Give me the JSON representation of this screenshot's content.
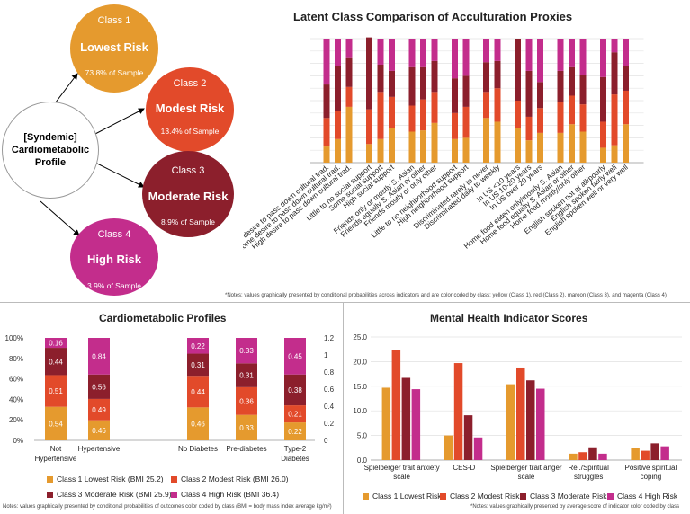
{
  "colors": {
    "class1": "#e59a2e",
    "class2": "#e24a2a",
    "class3": "#8c1f2c",
    "class4": "#c32d8c"
  },
  "left_panel": {
    "center": {
      "text_line1": "[Syndemic]",
      "text_line2": "Cardiometabolic",
      "text_line3": "Profile"
    },
    "classes": [
      {
        "class_label": "Class 1",
        "risk": "Lowest Risk",
        "sample": "73.8% of Sample"
      },
      {
        "class_label": "Class 2",
        "risk": "Modest Risk",
        "sample": "13.4% of Sample"
      },
      {
        "class_label": "Class 3",
        "risk": "Moderate Risk",
        "sample": "8.9% of Sample"
      },
      {
        "class_label": "Class 4",
        "risk": "High Risk",
        "sample": "3.9% of Sample"
      }
    ]
  },
  "chart_data": [
    {
      "type": "bar",
      "stacked": true,
      "title": "Latent Class Comparison of Acculturation Proxies",
      "note": "*Notes: values graphically presented by conditional probabilities across indicators and are color coded by class: yellow (Class 1), red (Class 2), maroon (Class 3), and magenta (Class 4)",
      "categories": [
        "Little/no desire to pass down cultural trad.",
        "Some desire to pass down cultural trad.",
        "High desire to pass down cultural trad.",
        "Little to no social support",
        "Some social support",
        "High social support",
        "Friends only or mostly S. Asian",
        "Friends equally S. Asian or other",
        "Friends mostly or only other",
        "Little to no neighborhood support",
        "High neighborhood support",
        "Discriminated rarely to never",
        "Discriminated daily to weekly",
        "In US <10 years",
        "In US 10-20 years",
        "In US over 20 years",
        "Home food eaten only/mostly S. Asian",
        "Home food equally S. Asian or other",
        "Home food mostly/only other",
        "English spoken not at all/poorly",
        "English spoken fairly well",
        "English spoken well or very well"
      ],
      "groups": [
        3,
        3,
        3,
        2,
        2,
        3,
        3,
        3
      ],
      "series": [
        {
          "name": "Class 1",
          "values": [
            0.13,
            0.19,
            0.45,
            0.15,
            0.19,
            0.28,
            0.25,
            0.26,
            0.32,
            0.19,
            0.2,
            0.36,
            0.33,
            0.28,
            0.18,
            0.24,
            0.24,
            0.31,
            0.25,
            0.12,
            0.14,
            0.31
          ]
        },
        {
          "name": "Class 2",
          "values": [
            0.23,
            0.23,
            0.16,
            0.28,
            0.38,
            0.25,
            0.21,
            0.25,
            0.25,
            0.21,
            0.25,
            0.21,
            0.27,
            0.22,
            0.19,
            0.2,
            0.25,
            0.23,
            0.22,
            0.21,
            0.41,
            0.27
          ]
        },
        {
          "name": "Class 3",
          "values": [
            0.27,
            0.36,
            0.24,
            0.58,
            0.22,
            0.21,
            0.31,
            0.26,
            0.25,
            0.28,
            0.25,
            0.24,
            0.22,
            0.5,
            0.37,
            0.21,
            0.25,
            0.23,
            0.24,
            0.36,
            0.34,
            0.2
          ]
        },
        {
          "name": "Class 4",
          "values": [
            0.37,
            0.22,
            0.15,
            0.0,
            0.21,
            0.26,
            0.23,
            0.23,
            0.18,
            0.32,
            0.3,
            0.19,
            0.18,
            0.0,
            0.26,
            0.35,
            0.26,
            0.23,
            0.29,
            0.31,
            0.11,
            0.22
          ]
        }
      ]
    },
    {
      "type": "bar",
      "stacked": true,
      "title": "Cardiometabolic Profiles",
      "note": "Notes: values graphically presented by conditional probabilities of outcomes color coded by class (BMI = body mass index average kg/m²)",
      "categories": [
        "Not Hypertensive",
        "Hypertensive",
        "No Diabetes",
        "Pre-diabetes",
        "Type-2 Diabetes"
      ],
      "y_ticks_left": [
        "0%",
        "20%",
        "40%",
        "60%",
        "80%",
        "100%"
      ],
      "y_ticks_right": [
        "0",
        "0.2",
        "0.4",
        "0.6",
        "0.8",
        "1",
        "1.2"
      ],
      "series": [
        {
          "name": "Class 1 Lowest Risk (BMI 25.2)",
          "values": [
            0.54,
            0.46,
            0.46,
            0.33,
            0.22
          ],
          "labels": [
            "0.54",
            "0.46",
            "0.46",
            "0.33",
            "0.22"
          ]
        },
        {
          "name": "Class 2 Modest Risk (BMI 26.0)",
          "values": [
            0.51,
            0.49,
            0.44,
            0.36,
            0.21
          ],
          "labels": [
            "0.51",
            "0.49",
            "0.44",
            "0.36",
            "0.21"
          ]
        },
        {
          "name": "Class 3 Moderate Risk (BMI 25.9)",
          "values": [
            0.44,
            0.56,
            0.31,
            0.31,
            0.38
          ],
          "labels": [
            "0.44",
            "0.56",
            "0.31",
            "0.31",
            "0.38"
          ]
        },
        {
          "name": "Class 4 High Risk (BMI 36.4)",
          "values": [
            0.16,
            0.84,
            0.22,
            0.33,
            0.45
          ],
          "labels": [
            "0.16",
            "0.84",
            "0.22",
            "0.33",
            "0.45"
          ]
        }
      ]
    },
    {
      "type": "bar",
      "title": "Mental Health Indicator Scores",
      "note": "*Notes: values graphically presented by average score of indicator color coded by class",
      "categories": [
        "Spielberger trait anxiety scale",
        "CES-D",
        "Spielberger trait anger scale",
        "Rel./Spiritual struggles",
        "Positive spiritual coping"
      ],
      "ylim": [
        0,
        25
      ],
      "y_ticks": [
        "0.0",
        "5.0",
        "10.0",
        "15.0",
        "20.0",
        "25.0"
      ],
      "series": [
        {
          "name": "Class 1 Lowest Risk",
          "values": [
            14.7,
            5.0,
            15.4,
            1.3,
            2.5
          ]
        },
        {
          "name": "Class 2 Modest Risk",
          "values": [
            22.3,
            19.7,
            18.8,
            1.6,
            1.9
          ]
        },
        {
          "name": "Class 3 Moderate Risk",
          "values": [
            16.7,
            9.1,
            16.2,
            2.6,
            3.4
          ]
        },
        {
          "name": "Class 4 High Risk",
          "values": [
            14.4,
            4.6,
            14.5,
            1.3,
            2.8
          ]
        }
      ]
    }
  ]
}
